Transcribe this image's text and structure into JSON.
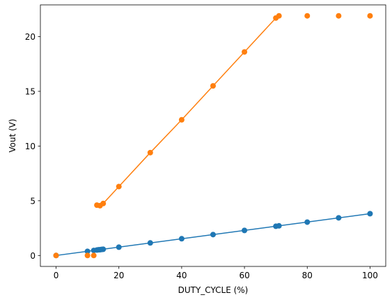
{
  "chart_data": {
    "type": "scatter",
    "title": "",
    "xlabel": "DUTY_CYCLE (%)",
    "ylabel": "Vout (V)",
    "xlim": [
      -5,
      105
    ],
    "ylim": [
      -1.0,
      22.9
    ],
    "xticks": [
      0,
      20,
      40,
      60,
      80,
      100
    ],
    "yticks": [
      0,
      5,
      10,
      15,
      20
    ],
    "grid": false,
    "series": [
      {
        "color": "#1f77b4",
        "points": [
          [
            0,
            0.0
          ],
          [
            10,
            0.38
          ],
          [
            12,
            0.46
          ],
          [
            13,
            0.5
          ],
          [
            13.5,
            0.52
          ],
          [
            14,
            0.53
          ],
          [
            14.5,
            0.55
          ],
          [
            15,
            0.57
          ],
          [
            20,
            0.76
          ],
          [
            30,
            1.15
          ],
          [
            40,
            1.53
          ],
          [
            50,
            1.91
          ],
          [
            60,
            2.29
          ],
          [
            70,
            2.67
          ],
          [
            71,
            2.71
          ],
          [
            80,
            3.05
          ],
          [
            90,
            3.44
          ],
          [
            100,
            3.82
          ]
        ],
        "line": [
          [
            0,
            0.0
          ],
          [
            100,
            3.82
          ]
        ]
      },
      {
        "color": "#ff7f0e",
        "points": [
          [
            0,
            0.0
          ],
          [
            10,
            0.0
          ],
          [
            12,
            0.0
          ],
          [
            13,
            4.6
          ],
          [
            14,
            4.55
          ],
          [
            15,
            4.75
          ],
          [
            20,
            6.3
          ],
          [
            30,
            9.4
          ],
          [
            40,
            12.4
          ],
          [
            50,
            15.5
          ],
          [
            60,
            18.6
          ],
          [
            70,
            21.7
          ],
          [
            71,
            21.9
          ],
          [
            80,
            21.9
          ],
          [
            90,
            21.9
          ],
          [
            100,
            21.9
          ]
        ],
        "line": [
          [
            13,
            4.6
          ],
          [
            14,
            4.55
          ],
          [
            15,
            4.75
          ],
          [
            20,
            6.3
          ],
          [
            30,
            9.4
          ],
          [
            40,
            12.4
          ],
          [
            50,
            15.5
          ],
          [
            60,
            18.6
          ],
          [
            70,
            21.7
          ]
        ]
      }
    ]
  }
}
